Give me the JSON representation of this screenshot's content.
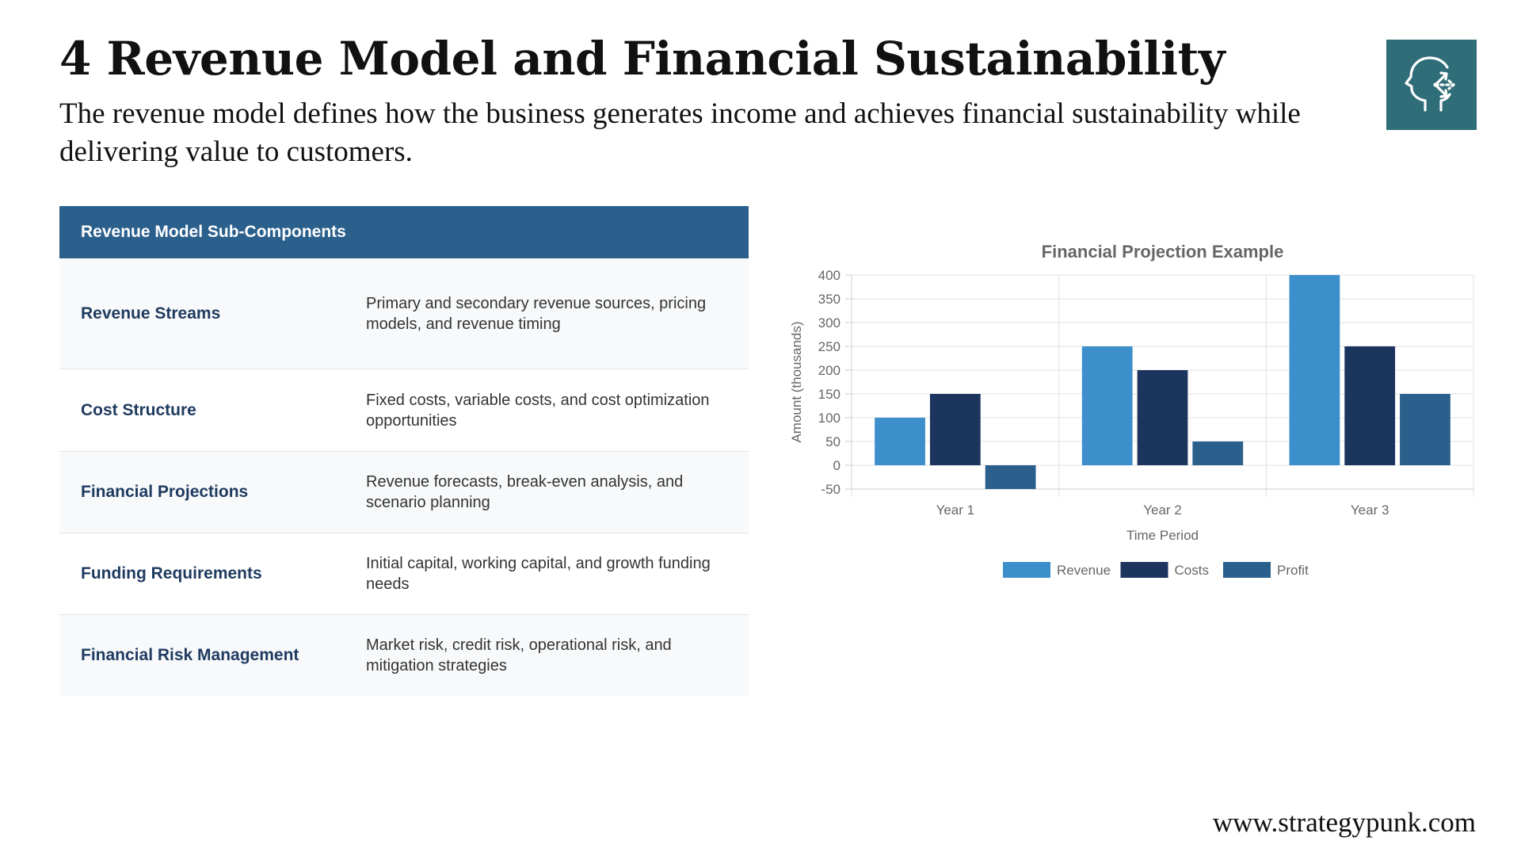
{
  "header": {
    "title": "4 Revenue Model and Financial Sustainability",
    "subtitle": "The revenue model defines how the business generates income and achieves financial sustainability while delivering value to customers."
  },
  "logo": {
    "icon": "head-arrows-icon",
    "color": "#2f6e78"
  },
  "table": {
    "header": "Revenue Model Sub-Components",
    "rows": [
      {
        "name": "Revenue Streams",
        "description": "Primary and secondary revenue sources, pricing models, and revenue timing"
      },
      {
        "name": "Cost Structure",
        "description": "Fixed costs, variable costs, and cost optimization opportunities"
      },
      {
        "name": "Financial Projections",
        "description": "Revenue forecasts, break-even analysis, and scenario planning"
      },
      {
        "name": "Funding Requirements",
        "description": "Initial capital, working capital, and growth funding needs"
      },
      {
        "name": "Financial Risk Management",
        "description": "Market risk, credit risk, operational risk, and mitigation strategies"
      }
    ]
  },
  "chart_data": {
    "type": "bar",
    "title": "Financial Projection Example",
    "xlabel": "Time Period",
    "ylabel": "Amount (thousands)",
    "categories": [
      "Year 1",
      "Year 2",
      "Year 3"
    ],
    "series": [
      {
        "name": "Revenue",
        "values": [
          100,
          250,
          400
        ],
        "color": "#3d8fcc"
      },
      {
        "name": "Costs",
        "values": [
          150,
          200,
          250
        ],
        "color": "#1c355e"
      },
      {
        "name": "Profit",
        "values": [
          -50,
          50,
          150
        ],
        "color": "#2b5f8c"
      }
    ],
    "ylim": [
      -50,
      400
    ],
    "yticks": [
      -50,
      0,
      50,
      100,
      150,
      200,
      250,
      300,
      350,
      400
    ],
    "grid": true,
    "legend_position": "bottom"
  },
  "footer": {
    "website": "www.strategypunk.com"
  }
}
